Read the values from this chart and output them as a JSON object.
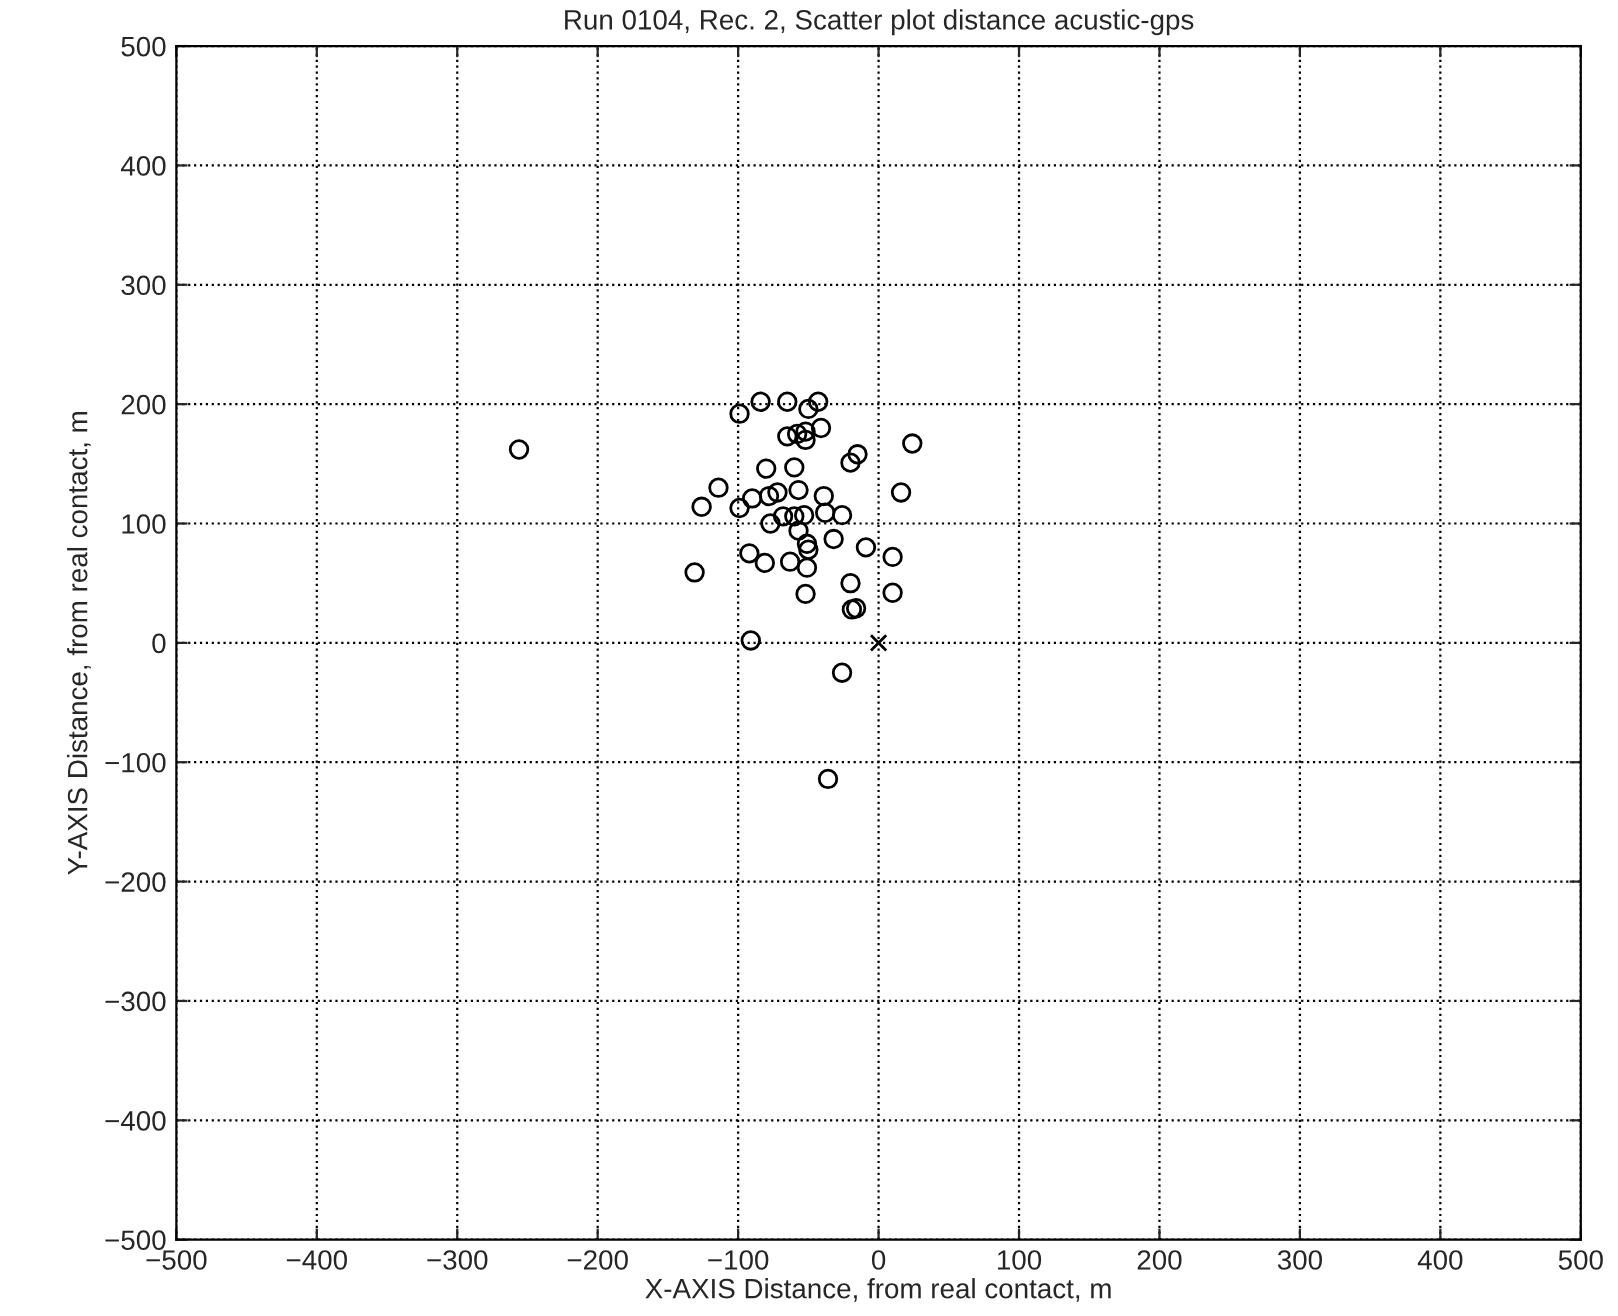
{
  "chart_data": {
    "type": "scatter",
    "title": "Run 0104, Rec. 2, Scatter plot distance acustic-gps",
    "xlabel": "X-AXIS Distance, from real contact, m",
    "ylabel": "Y-AXIS Distance, from real contact, m",
    "xlim": [
      -500,
      500
    ],
    "ylim": [
      -500,
      500
    ],
    "xticks": [
      -500,
      -400,
      -300,
      -200,
      -100,
      0,
      100,
      200,
      300,
      400,
      500
    ],
    "yticks": [
      -500,
      -400,
      -300,
      -200,
      -100,
      0,
      100,
      200,
      300,
      400,
      500
    ],
    "grid": true,
    "line_style": "dotted",
    "series": [
      {
        "color": "#000000",
        "marker": "circle",
        "x": [
          -99,
          -84,
          -65,
          -50,
          -43,
          -65,
          -58,
          -52,
          -52,
          -41,
          24,
          -20,
          -15,
          -80,
          -60,
          -114,
          -126,
          -99,
          -90,
          -78,
          -72,
          -57,
          -39,
          16,
          -77,
          -68,
          -60,
          -53,
          -38,
          -26,
          -57,
          -51,
          -50,
          -32,
          -9,
          10,
          -92,
          -81,
          -63,
          -51,
          -131,
          -20,
          -52,
          10,
          -19,
          -16,
          -91,
          -26,
          -36,
          -256
        ],
        "values": [
          192,
          202,
          202,
          196,
          202,
          173,
          175,
          177,
          170,
          180,
          167,
          151,
          158,
          146,
          147,
          130,
          114,
          113,
          121,
          123,
          126,
          128,
          123,
          126,
          100,
          106,
          106,
          107,
          109,
          107,
          94,
          83,
          78,
          87,
          80,
          72,
          75,
          67,
          68,
          63,
          59,
          50,
          41,
          42,
          28,
          29,
          2,
          -25,
          -114,
          162
        ]
      },
      {
        "color": "#000000",
        "marker": "cross",
        "x": [
          0
        ],
        "values": [
          0
        ]
      }
    ]
  }
}
